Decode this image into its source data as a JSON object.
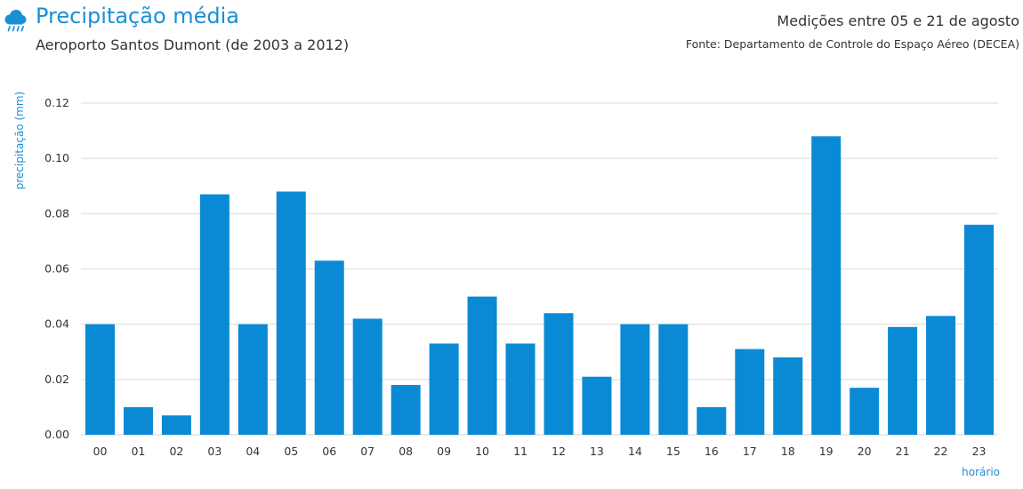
{
  "header": {
    "title": "Precipitação média",
    "subtitle": "Aeroporto Santos Dumont (de 2003 a 2012)",
    "period": "Medições entre 05 e 21 de agosto",
    "source": "Fonte: Departamento de Controle do Espaço Aéreo (DECEA)",
    "icon": "rain-cloud-icon"
  },
  "colors": {
    "accent": "#1a8fd6",
    "bar": "#0a8ad4",
    "grid": "#d9d9d9"
  },
  "chart_data": {
    "type": "bar",
    "title": "Precipitação média",
    "xlabel": "horário",
    "ylabel": "precipitação (mm)",
    "ylim": [
      0,
      0.12
    ],
    "yticks": [
      "0.00",
      "0.02",
      "0.04",
      "0.06",
      "0.08",
      "0.10",
      "0.12"
    ],
    "grid": true,
    "categories": [
      "00",
      "01",
      "02",
      "03",
      "04",
      "05",
      "06",
      "07",
      "08",
      "09",
      "10",
      "11",
      "12",
      "13",
      "14",
      "15",
      "16",
      "17",
      "18",
      "19",
      "20",
      "21",
      "22",
      "23"
    ],
    "values": [
      0.04,
      0.01,
      0.007,
      0.087,
      0.04,
      0.088,
      0.063,
      0.042,
      0.018,
      0.033,
      0.05,
      0.033,
      0.044,
      0.021,
      0.04,
      0.04,
      0.01,
      0.031,
      0.028,
      0.108,
      0.017,
      0.039,
      0.043,
      0.076
    ]
  }
}
